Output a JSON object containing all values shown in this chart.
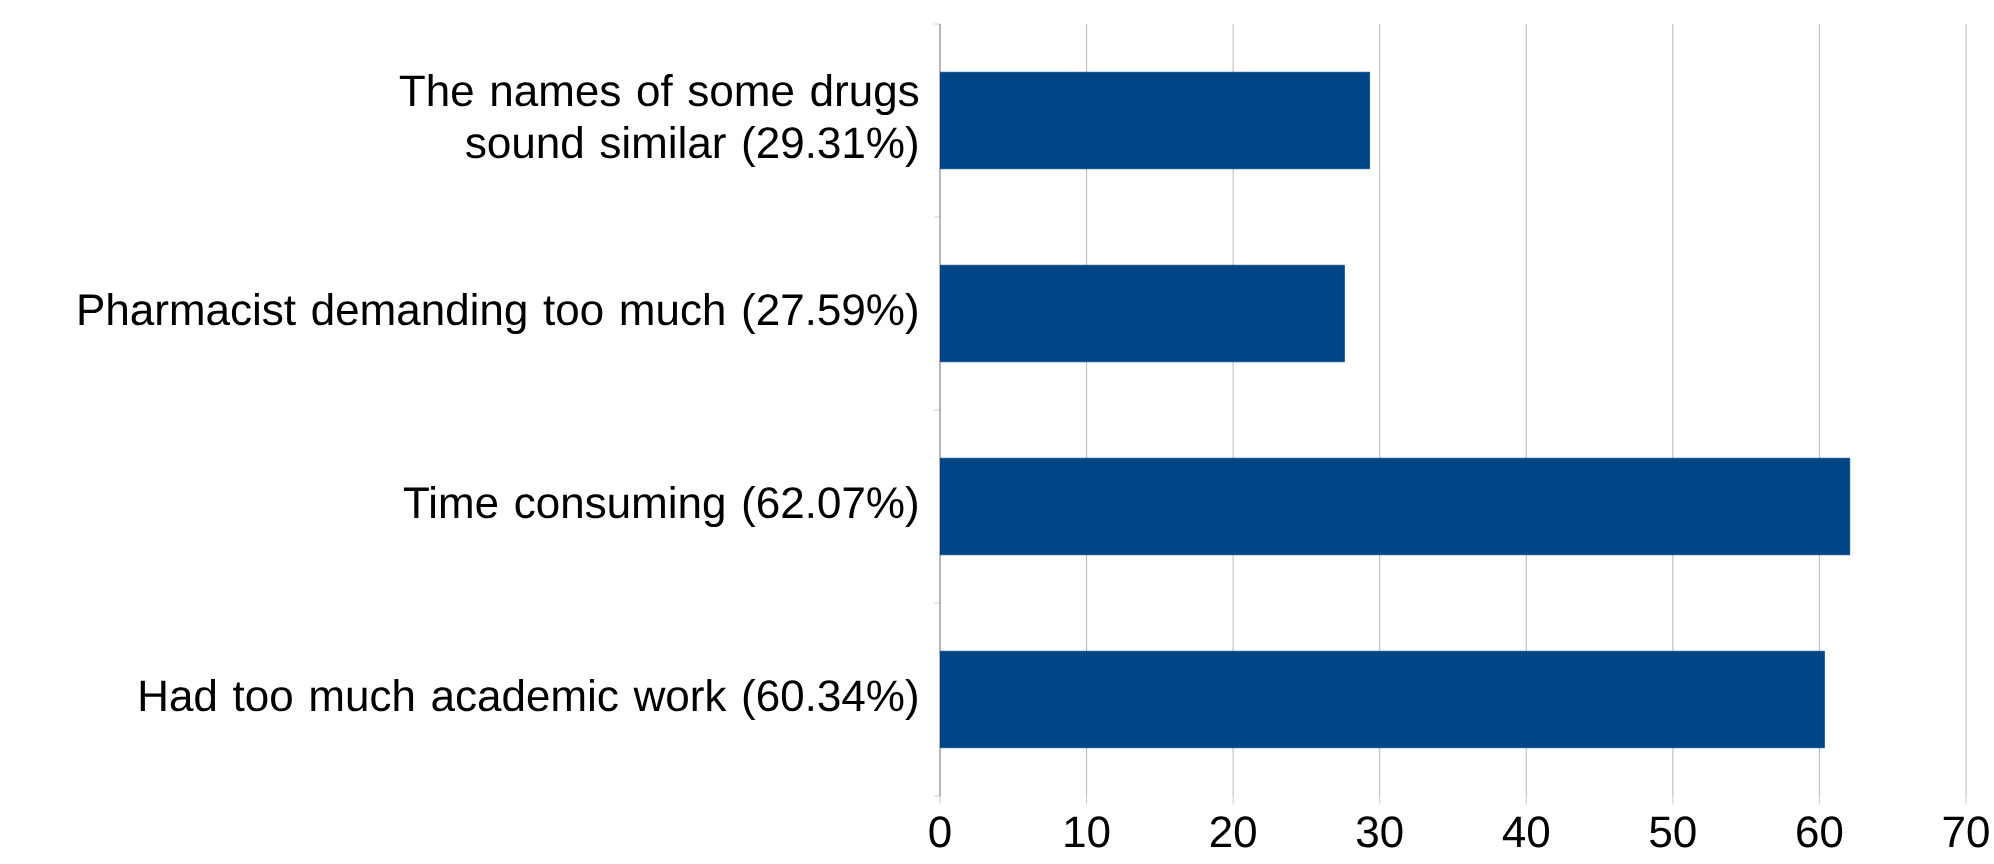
{
  "chart_data": {
    "type": "bar",
    "orientation": "horizontal",
    "categories": [
      "The names of some drugs sound similar (29.31%)",
      "Pharmacist demanding too much (27.59%)",
      "Time consuming (62.07%)",
      "Had too much academic work (60.34%)"
    ],
    "values": [
      29.31,
      27.59,
      62.07,
      60.34
    ],
    "color": "#004586",
    "xlim": [
      0,
      70
    ],
    "xticks": [
      0,
      10,
      20,
      30,
      40,
      50,
      60,
      70
    ],
    "grid": "x"
  }
}
